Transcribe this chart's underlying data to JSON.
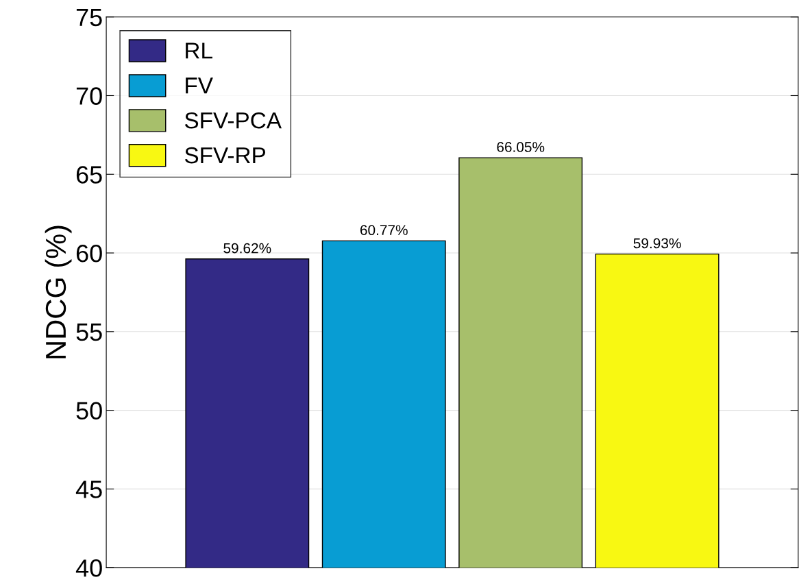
{
  "chart_data": {
    "type": "bar",
    "ylabel": "NDCG (%)",
    "categories": [
      null
    ],
    "series": [
      {
        "name": "RL",
        "color": "#332a86",
        "values": [
          59.62
        ],
        "value_labels": [
          "59.62%"
        ]
      },
      {
        "name": "FV",
        "color": "#089dd3",
        "values": [
          60.77
        ],
        "value_labels": [
          "60.77%"
        ]
      },
      {
        "name": "SFV-PCA",
        "color": "#a7bf6b",
        "values": [
          66.05
        ],
        "value_labels": [
          "66.05%"
        ]
      },
      {
        "name": "SFV-RP",
        "color": "#f8f812",
        "values": [
          59.93
        ],
        "value_labels": [
          "59.93%"
        ]
      }
    ],
    "ylim": [
      40,
      75
    ],
    "yticks": [
      40,
      45,
      50,
      55,
      60,
      65,
      70,
      75
    ],
    "grid": "y",
    "legend": "top left"
  }
}
